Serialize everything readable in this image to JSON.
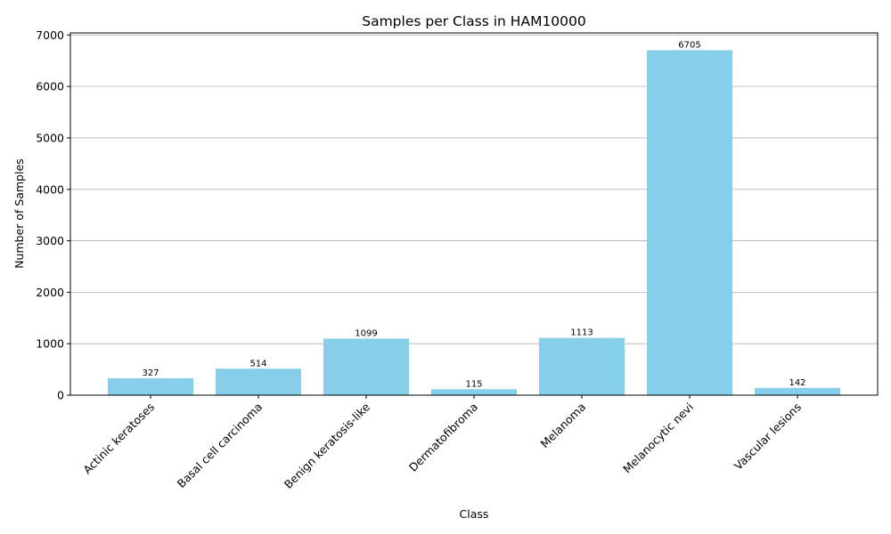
{
  "chart_data": {
    "type": "bar",
    "title": "Samples per Class in HAM10000",
    "xlabel": "Class",
    "ylabel": "Number of Samples",
    "categories": [
      "Actinic keratoses",
      "Basal cell carcinoma",
      "Benign keratosis-like",
      "Dermatofibroma",
      "Melanoma",
      "Melanocytic nevi",
      "Vascular lesions"
    ],
    "values": [
      327,
      514,
      1099,
      115,
      1113,
      6705,
      142
    ],
    "data_labels": [
      "327",
      "514",
      "1099",
      "115",
      "1113",
      "6705",
      "142"
    ],
    "ylim": [
      0,
      7040
    ],
    "yticks": [
      0,
      1000,
      2000,
      3000,
      4000,
      5000,
      6000,
      7000
    ],
    "ytick_labels": [
      "0",
      "1000",
      "2000",
      "3000",
      "4000",
      "5000",
      "6000",
      "7000"
    ],
    "grid": "y-major",
    "bar_color": "#87ceeb",
    "x_tick_rotation": "45 degrees"
  }
}
